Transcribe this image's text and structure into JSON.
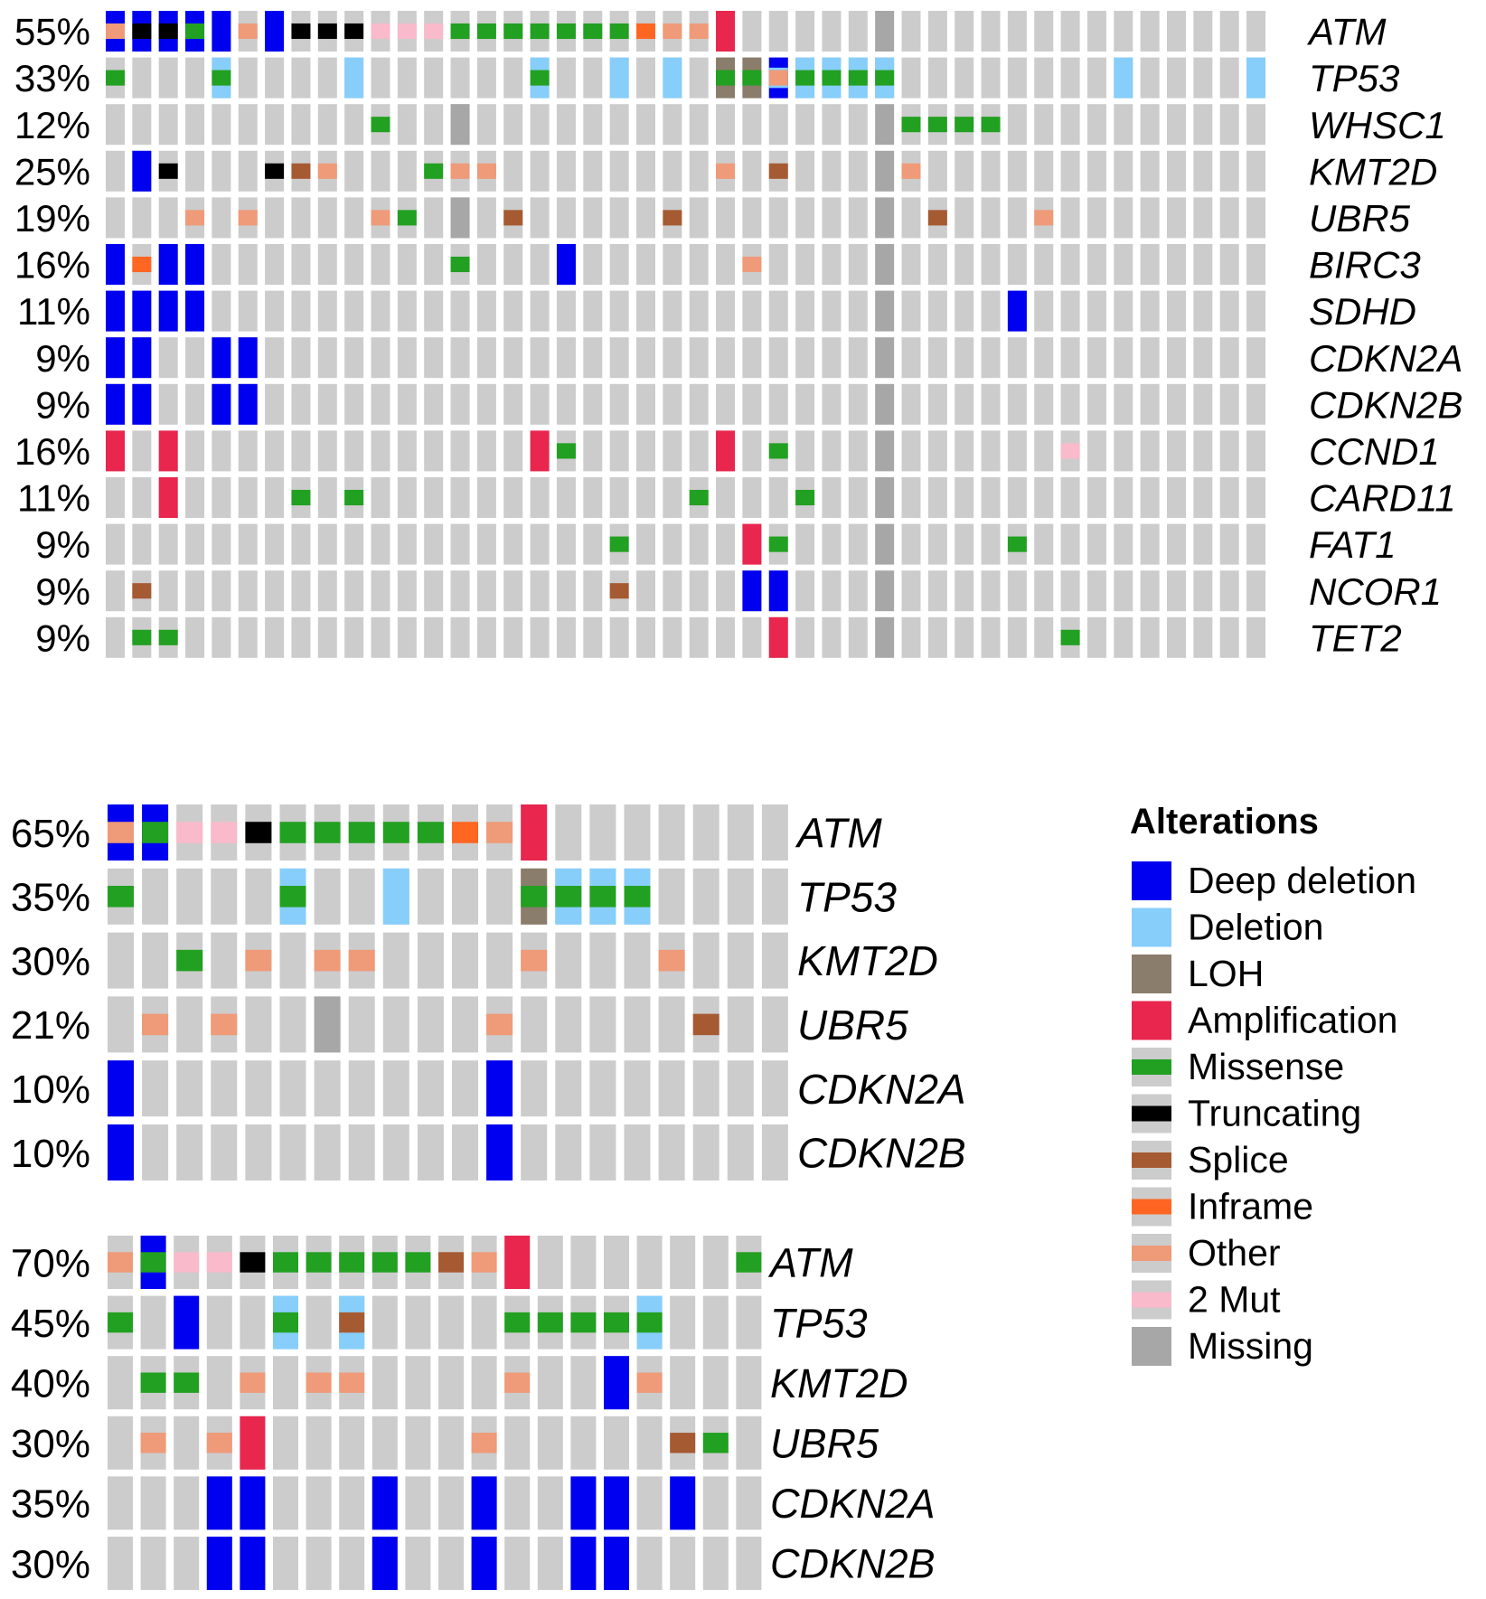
{
  "chart_data": {
    "type": "heatmap",
    "subtype": "oncoprint",
    "colors": {
      "background": "#cccccc",
      "Deep deletion": "#0000f0",
      "Deletion": "#87cefa",
      "LOH": "#8b7d6b",
      "Amplification": "#e8264e",
      "Missense": "#22a021",
      "Truncating": "#000000",
      "Splice": "#a65a32",
      "Inframe": "#ff6622",
      "Other": "#ef9a78",
      "2 Mut": "#f9bacb",
      "Missing": "#a7a7a7"
    },
    "code_legend": {
      "D": "Deep deletion",
      "L": "Deletion",
      "H": "LOH",
      "A": "Amplification",
      "M": "Missense",
      "T": "Truncating",
      "S": "Splice",
      "I": "Inframe",
      "O": "Other",
      "2": "2 Mut",
      "X": "Missing"
    },
    "panels": [
      {
        "n_samples": 44,
        "rows": [
          {
            "pct": "55%",
            "gene": "ATM",
            "cells": [
              "0:D+O",
              "1:D+T",
              "2:D+T",
              "3:D+M",
              "4:D",
              "5:O",
              "6:D",
              "7:T",
              "8:T",
              "9:T",
              "10:2",
              "11:2",
              "12:2",
              "13:M",
              "14:M",
              "15:M",
              "16:M",
              "17:M",
              "18:M",
              "19:M",
              "20:I",
              "21:O",
              "22:O",
              "23:A"
            ]
          },
          {
            "pct": "33%",
            "gene": "TP53",
            "cells": [
              "0:M",
              "4:L+M",
              "9:L",
              "16:L+M",
              "19:L",
              "21:L",
              "23:H+M",
              "24:H+M",
              "25:D+L+O",
              "26:L+M",
              "27:L+M",
              "28:L+M",
              "29:L+M",
              "38:L",
              "43:L"
            ]
          },
          {
            "pct": "12%",
            "gene": "WHSC1",
            "cells": [
              "10:M",
              "13:X",
              "30:M",
              "31:M",
              "32:M",
              "33:M"
            ]
          },
          {
            "pct": "25%",
            "gene": "KMT2D",
            "cells": [
              "1:D",
              "2:T",
              "6:T",
              "7:S",
              "8:O",
              "12:M",
              "13:O",
              "14:O",
              "23:O",
              "25:S",
              "30:O"
            ]
          },
          {
            "pct": "19%",
            "gene": "UBR5",
            "cells": [
              "3:O",
              "5:O",
              "10:O",
              "11:M",
              "13:X",
              "15:S",
              "21:S",
              "31:S",
              "35:O"
            ]
          },
          {
            "pct": "16%",
            "gene": "BIRC3",
            "cells": [
              "0:D",
              "1:I",
              "2:D",
              "3:D",
              "13:M",
              "17:D",
              "24:O"
            ]
          },
          {
            "pct": "11%",
            "gene": "SDHD",
            "cells": [
              "0:D",
              "1:D",
              "2:D",
              "3:D",
              "34:D"
            ]
          },
          {
            "pct": "9%",
            "gene": "CDKN2A",
            "cells": [
              "0:D",
              "1:D",
              "4:D",
              "5:D"
            ]
          },
          {
            "pct": "9%",
            "gene": "CDKN2B",
            "cells": [
              "0:D",
              "1:D",
              "4:D",
              "5:D"
            ]
          },
          {
            "pct": "16%",
            "gene": "CCND1",
            "cells": [
              "0:A",
              "2:A",
              "16:A",
              "17:M",
              "23:A",
              "25:M",
              "36:2"
            ]
          },
          {
            "pct": "11%",
            "gene": "CARD11",
            "cells": [
              "2:A",
              "7:M",
              "9:M",
              "22:M",
              "26:M"
            ]
          },
          {
            "pct": "9%",
            "gene": "FAT1",
            "cells": [
              "19:M",
              "24:A",
              "25:M",
              "34:M"
            ]
          },
          {
            "pct": "9%",
            "gene": "NCOR1",
            "cells": [
              "1:S",
              "19:S",
              "24:D",
              "25:D"
            ]
          },
          {
            "pct": "9%",
            "gene": "TET2",
            "cells": [
              "1:M",
              "2:M",
              "25:A",
              "36:M"
            ]
          }
        ],
        "missing_sample_column": 29
      },
      {
        "n_samples": 20,
        "rows": [
          {
            "pct": "65%",
            "gene": "ATM",
            "cells": [
              "0:D+O",
              "1:D+M",
              "2:2",
              "3:2",
              "4:T",
              "5:M",
              "6:M",
              "7:M",
              "8:M",
              "9:M",
              "10:I",
              "11:O",
              "12:A"
            ]
          },
          {
            "pct": "35%",
            "gene": "TP53",
            "cells": [
              "0:M",
              "5:L+M",
              "8:L",
              "12:H+M",
              "13:L+M",
              "14:L+M",
              "15:L+M"
            ]
          },
          {
            "pct": "30%",
            "gene": "KMT2D",
            "cells": [
              "2:M",
              "4:O",
              "6:O",
              "7:O",
              "12:O",
              "16:O"
            ]
          },
          {
            "pct": "21%",
            "gene": "UBR5",
            "cells": [
              "1:O",
              "3:O",
              "6:X",
              "11:O",
              "17:S"
            ]
          },
          {
            "pct": "10%",
            "gene": "CDKN2A",
            "cells": [
              "0:D",
              "11:D"
            ]
          },
          {
            "pct": "10%",
            "gene": "CDKN2B",
            "cells": [
              "0:D",
              "11:D"
            ]
          }
        ]
      },
      {
        "n_samples": 20,
        "rows": [
          {
            "pct": "70%",
            "gene": "ATM",
            "cells": [
              "0:O",
              "1:D+M",
              "2:2",
              "3:2",
              "4:T",
              "5:M",
              "6:M",
              "7:M",
              "8:M",
              "9:M",
              "10:S",
              "11:O",
              "12:A",
              "19:M"
            ]
          },
          {
            "pct": "45%",
            "gene": "TP53",
            "cells": [
              "0:M",
              "2:D",
              "5:L+M",
              "7:L+S",
              "12:M",
              "13:M",
              "14:M",
              "15:M",
              "16:L+M"
            ]
          },
          {
            "pct": "40%",
            "gene": "KMT2D",
            "cells": [
              "1:M",
              "2:M",
              "4:O",
              "6:O",
              "7:O",
              "12:O",
              "15:D",
              "16:O"
            ]
          },
          {
            "pct": "30%",
            "gene": "UBR5",
            "cells": [
              "1:O",
              "3:O",
              "4:A",
              "11:O",
              "17:S",
              "18:M"
            ]
          },
          {
            "pct": "35%",
            "gene": "CDKN2A",
            "cells": [
              "3:D",
              "4:D",
              "8:D",
              "11:D",
              "14:D",
              "15:D",
              "17:D"
            ]
          },
          {
            "pct": "30%",
            "gene": "CDKN2B",
            "cells": [
              "3:D",
              "4:D",
              "8:D",
              "11:D",
              "14:D",
              "15:D"
            ]
          }
        ]
      }
    ],
    "legend": {
      "title": "Alterations",
      "placement": "right",
      "items": [
        "Deep deletion",
        "Deletion",
        "LOH",
        "Amplification",
        "Missense",
        "Truncating",
        "Splice",
        "Inframe",
        "Other",
        "2 Mut",
        "Missing"
      ]
    }
  }
}
